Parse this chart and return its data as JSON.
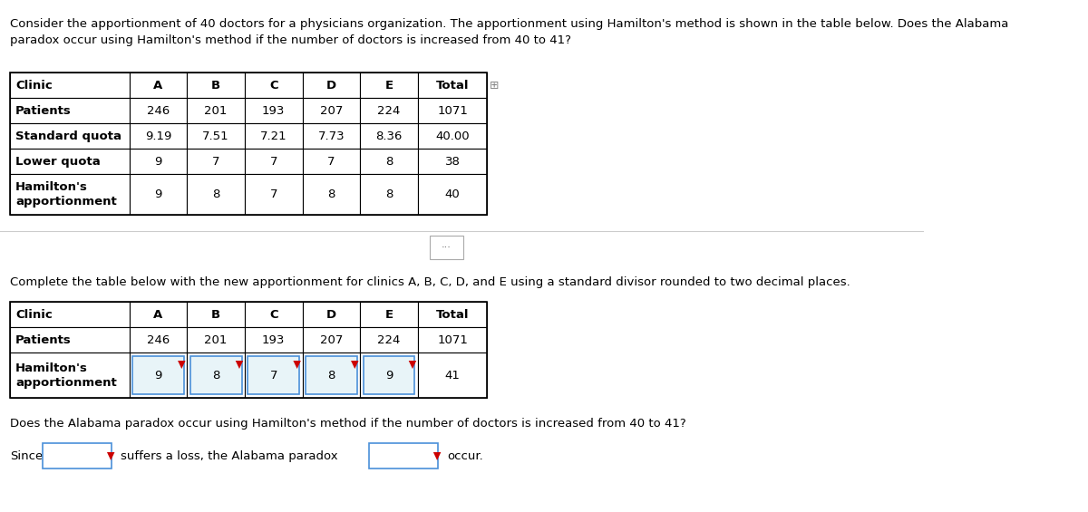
{
  "title_text": "Consider the apportionment of 40 doctors for a physicians organization. The apportionment using Hamilton's method is shown in the table below. Does the Alabama\nparadox occur using Hamilton's method if the number of doctors is increased from 40 to 41?",
  "table1": {
    "col_labels": [
      "Clinic",
      "A",
      "B",
      "C",
      "D",
      "E",
      "Total"
    ],
    "rows": [
      [
        "Patients",
        "246",
        "201",
        "193",
        "207",
        "224",
        "1071"
      ],
      [
        "Standard quota",
        "9.19",
        "7.51",
        "7.21",
        "7.73",
        "8.36",
        "40.00"
      ],
      [
        "Lower quota",
        "9",
        "7",
        "7",
        "7",
        "8",
        "38"
      ],
      [
        "Hamilton's\napportionment",
        "9",
        "8",
        "7",
        "8",
        "8",
        "40"
      ]
    ]
  },
  "mid_text": "Complete the table below with the new apportionment for clinics A, B, C, D, and E using a standard divisor rounded to two decimal places.",
  "table2": {
    "col_labels": [
      "Clinic",
      "A",
      "B",
      "C",
      "D",
      "E",
      "Total"
    ],
    "rows": [
      [
        "Patients",
        "246",
        "201",
        "193",
        "207",
        "224",
        "1071"
      ],
      [
        "Hamilton's\napportionment",
        "9",
        "8",
        "7",
        "8",
        "9",
        "41"
      ]
    ],
    "input_cells": [
      0,
      1,
      2,
      3,
      4
    ]
  },
  "bottom_text": "Does the Alabama paradox occur using Hamilton's method if the number of doctors is increased from 40 to 41?",
  "since_text": "Since",
  "suffers_text": "suffers a loss, the Alabama paradox",
  "occur_text": "occur.",
  "bg_color": "#ffffff",
  "text_color": "#000000",
  "table_border_color": "#000000",
  "input_box_color": "#e8f4f8",
  "input_box_border": "#4a90d9",
  "dropdown_arrow_color": "#cc0000"
}
